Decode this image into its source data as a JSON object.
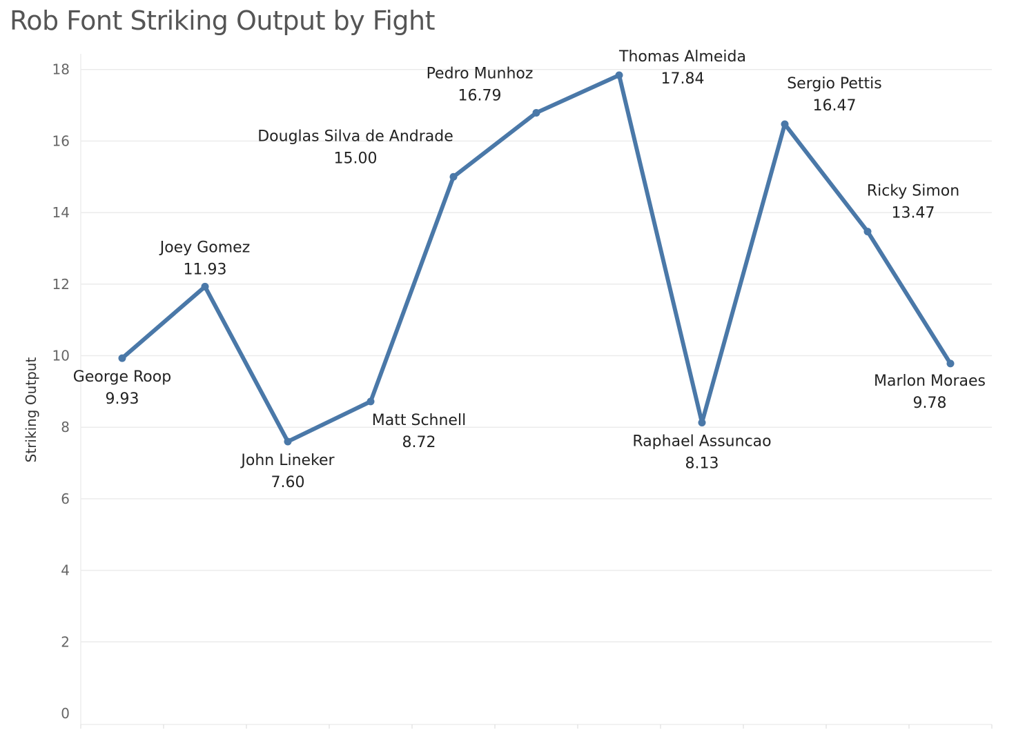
{
  "chart_data": {
    "type": "line",
    "title": "Rob Font Striking Output by Fight",
    "xlabel": "",
    "ylabel": "Striking Output",
    "ylim": [
      0,
      18.5
    ],
    "yticks": [
      0,
      2,
      4,
      6,
      8,
      10,
      12,
      14,
      16,
      18
    ],
    "grid": true,
    "color": "#4a78a8",
    "points": [
      {
        "label": "George Roop",
        "value": 9.93,
        "value_text": "9.93",
        "label_pos": "below"
      },
      {
        "label": "Joey Gomez",
        "value": 11.93,
        "value_text": "11.93",
        "label_pos": "above"
      },
      {
        "label": "John Lineker",
        "value": 7.6,
        "value_text": "7.60",
        "label_pos": "below"
      },
      {
        "label": "Matt Schnell",
        "value": 8.72,
        "value_text": "8.72",
        "label_pos": "below-right"
      },
      {
        "label": "Douglas Silva de Andrade",
        "value": 15.0,
        "value_text": "15.00",
        "label_pos": "above-left"
      },
      {
        "label": "Pedro Munhoz",
        "value": 16.79,
        "value_text": "16.79",
        "label_pos": "above-left"
      },
      {
        "label": "Thomas Almeida",
        "value": 17.84,
        "value_text": "17.84",
        "label_pos": "above-right"
      },
      {
        "label": "Raphael Assuncao",
        "value": 8.13,
        "value_text": "8.13",
        "label_pos": "below"
      },
      {
        "label": "Sergio Pettis",
        "value": 16.47,
        "value_text": "16.47",
        "label_pos": "above-right"
      },
      {
        "label": "Ricky Simon",
        "value": 13.47,
        "value_text": "13.47",
        "label_pos": "above-right"
      },
      {
        "label": "Marlon Moraes",
        "value": 9.78,
        "value_text": "9.78",
        "label_pos": "below-left"
      }
    ]
  }
}
